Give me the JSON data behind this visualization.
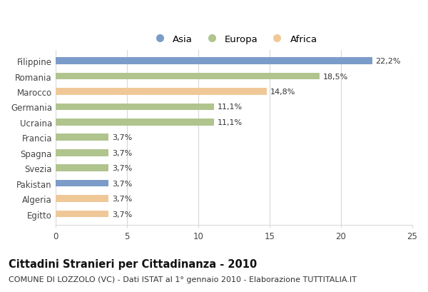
{
  "categories": [
    "Filippine",
    "Romania",
    "Marocco",
    "Germania",
    "Ucraina",
    "Francia",
    "Spagna",
    "Svezia",
    "Pakistan",
    "Algeria",
    "Egitto"
  ],
  "values": [
    22.2,
    18.5,
    14.8,
    11.1,
    11.1,
    3.7,
    3.7,
    3.7,
    3.7,
    3.7,
    3.7
  ],
  "labels": [
    "22,2%",
    "18,5%",
    "14,8%",
    "11,1%",
    "11,1%",
    "3,7%",
    "3,7%",
    "3,7%",
    "3,7%",
    "3,7%",
    "3,7%"
  ],
  "colors": [
    "#7b9cc8",
    "#b0c48e",
    "#f0c898",
    "#b0c48e",
    "#b0c48e",
    "#b0c48e",
    "#b0c48e",
    "#b0c48e",
    "#7b9cc8",
    "#f0c898",
    "#f0c898"
  ],
  "legend_labels": [
    "Asia",
    "Europa",
    "Africa"
  ],
  "legend_colors": [
    "#7b9cc8",
    "#b0c48e",
    "#f0c898"
  ],
  "xlim": [
    0,
    25
  ],
  "xticks": [
    0,
    5,
    10,
    15,
    20,
    25
  ],
  "title": "Cittadini Stranieri per Cittadinanza - 2010",
  "subtitle": "COMUNE DI LOZZOLO (VC) - Dati ISTAT al 1° gennaio 2010 - Elaborazione TUTTITALIA.IT",
  "title_fontsize": 10.5,
  "subtitle_fontsize": 8,
  "label_fontsize": 8,
  "tick_fontsize": 8.5,
  "legend_fontsize": 9.5,
  "background_color": "#ffffff",
  "grid_color": "#d8d8d8",
  "bar_height": 0.45
}
